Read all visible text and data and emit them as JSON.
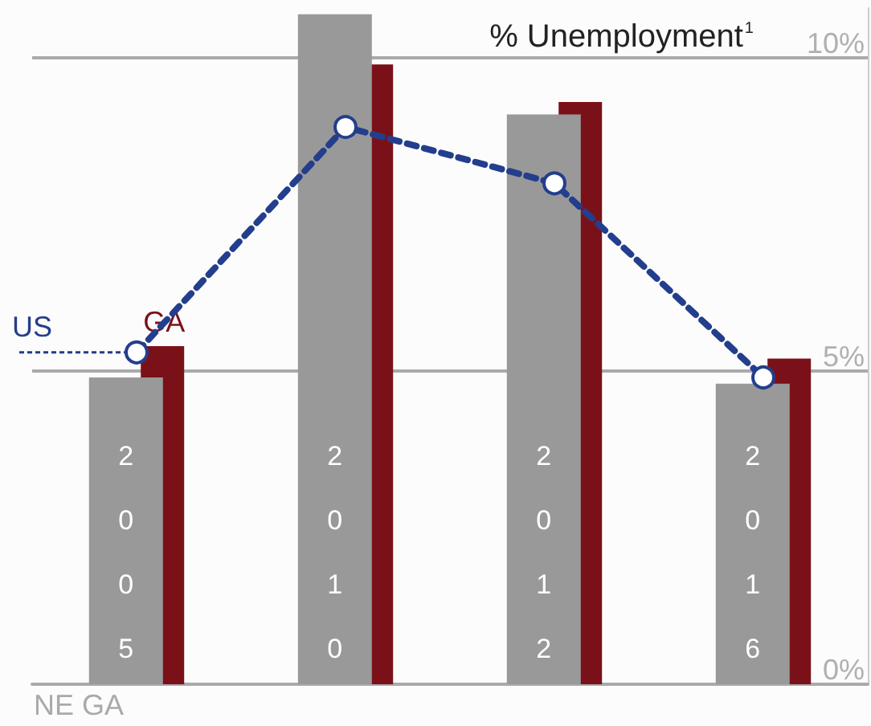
{
  "chart_data": {
    "type": "bar",
    "title": "% Unemployment$^{1}$",
    "categories": [
      "2005",
      "2010",
      "2012",
      "2016"
    ],
    "series": [
      {
        "name": "NE GA",
        "color": "#999999",
        "values": [
          4.9,
          10.7,
          9.1,
          4.8
        ]
      },
      {
        "name": "GA",
        "color": "#7b1118",
        "values": [
          5.4,
          9.9,
          9.3,
          5.2
        ]
      },
      {
        "name": "US",
        "type": "line",
        "color": "#233e8c",
        "values": [
          5.3,
          8.9,
          8.0,
          4.9
        ],
        "marker": "circle",
        "line_style": "dashed"
      }
    ],
    "ylim": [
      0,
      10.8
    ],
    "yticks": [
      {
        "value": 0,
        "label": "0%"
      },
      {
        "value": 5,
        "label": "5%"
      },
      {
        "value": 10,
        "label": "10%"
      }
    ],
    "grid": "y",
    "legend": false
  }
}
